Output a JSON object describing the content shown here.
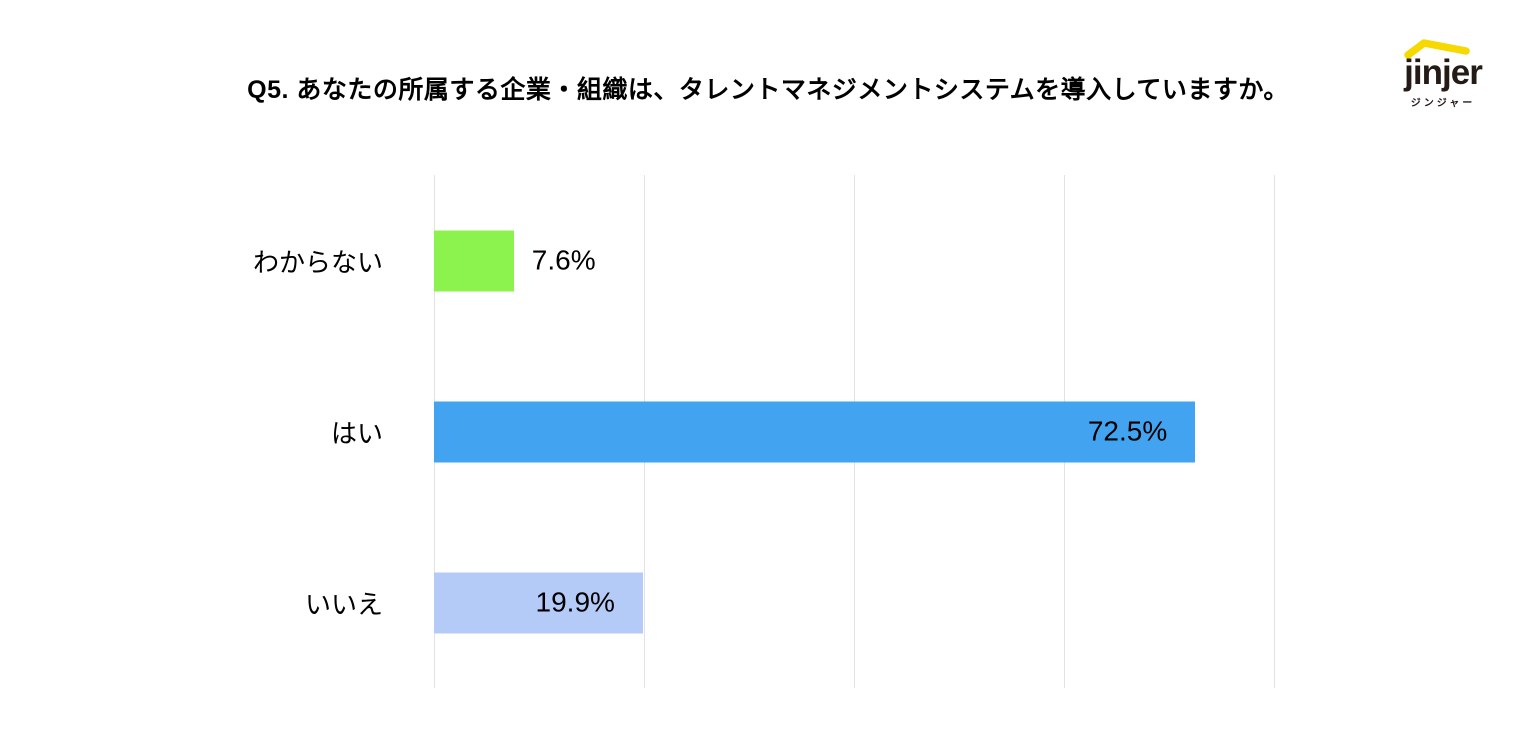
{
  "title": "Q5. あなたの所属する企業・組織は、タレントマネジメントシステムを導入していますか。",
  "logo": {
    "wordmark": "jinjer",
    "subtext": "ジンジャー",
    "roof_color": "#f6d900",
    "text_color": "#251b16"
  },
  "chart_data": {
    "type": "bar",
    "orientation": "horizontal",
    "title": "Q5. あなたの所属する企業・組織は、タレントマネジメントシステムを導入していますか。",
    "categories": [
      "はい",
      "いいえ",
      "わからない"
    ],
    "values": [
      72.5,
      19.9,
      7.6
    ],
    "xlim": [
      0,
      80
    ],
    "ticks": [
      0,
      20,
      40,
      60,
      80
    ],
    "grid": "vertical-only",
    "legend": "none",
    "background": "#ffffff",
    "gridline_color": "#e2e2e2",
    "rows": [
      {
        "label": "はい",
        "value": 72.5,
        "value_label": "72.5%",
        "color": "#42a4f0",
        "label_inside": true
      },
      {
        "label": "いいえ",
        "value": 19.9,
        "value_label": "19.9%",
        "color": "#b4cbf8",
        "label_inside": true
      },
      {
        "label": "わからない",
        "value": 7.6,
        "value_label": "7.6%",
        "color": "#8cf24e",
        "label_inside": false
      }
    ]
  }
}
